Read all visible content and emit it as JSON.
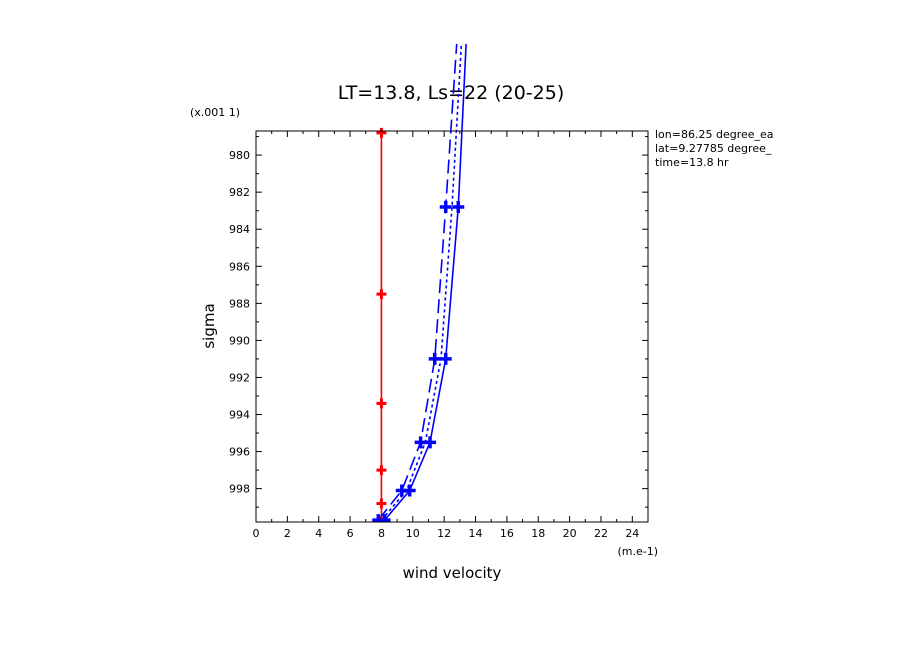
{
  "chart_data": {
    "type": "line",
    "title": "LT=13.8, Ls=22 (20-25)",
    "xlabel": "wind velocity",
    "ylabel": "sigma",
    "x_units": "(m.e-1)",
    "y_units": "(x.001 1)",
    "xlim": [
      0,
      25
    ],
    "ylim": [
      999.8,
      978.7
    ],
    "x_ticks": [
      "0",
      "2",
      "4",
      "6",
      "8",
      "10",
      "12",
      "14",
      "16",
      "18",
      "20",
      "22",
      "24"
    ],
    "y_ticks": [
      "980",
      "982",
      "984",
      "986",
      "988",
      "990",
      "992",
      "994",
      "996",
      "998"
    ],
    "annotations": [
      "lon=86.25 degree_ea",
      "lat=9.27785 degree_",
      "time=13.8 hr"
    ],
    "series": [
      {
        "color": "#ff0000",
        "style": "solid",
        "points": [
          [
            8.0,
            999.8
          ],
          [
            8.0,
            998.8
          ],
          [
            8.0,
            997.0
          ],
          [
            8.0,
            993.4
          ],
          [
            8.0,
            987.5
          ],
          [
            8.0,
            978.8
          ]
        ],
        "markers": [
          [
            8.0,
            999.8
          ],
          [
            8.0,
            998.8
          ],
          [
            8.0,
            997.0
          ],
          [
            8.0,
            993.4
          ],
          [
            8.0,
            987.5
          ],
          [
            8.0,
            978.8
          ]
        ]
      },
      {
        "color": "#0000ff",
        "style": "dash",
        "points": [
          [
            7.8,
            999.7
          ],
          [
            9.3,
            998.1
          ],
          [
            10.5,
            995.5
          ],
          [
            11.4,
            991.0
          ],
          [
            12.1,
            982.8
          ],
          [
            12.8,
            974.0
          ]
        ],
        "markers": [
          [
            7.8,
            999.7
          ],
          [
            9.3,
            998.1
          ],
          [
            10.5,
            995.5
          ],
          [
            11.4,
            991.0
          ],
          [
            12.1,
            982.8
          ]
        ]
      },
      {
        "color": "#0000ff",
        "style": "dot",
        "points": [
          [
            8.0,
            999.7
          ],
          [
            9.6,
            998.1
          ],
          [
            10.8,
            995.5
          ],
          [
            11.8,
            991.0
          ],
          [
            12.5,
            982.8
          ],
          [
            13.1,
            974.0
          ]
        ],
        "markers": []
      },
      {
        "color": "#0000ff",
        "style": "solid",
        "points": [
          [
            8.2,
            999.7
          ],
          [
            9.8,
            998.1
          ],
          [
            11.1,
            995.5
          ],
          [
            12.1,
            991.0
          ],
          [
            12.9,
            982.8
          ],
          [
            13.4,
            974.0
          ]
        ],
        "markers": [
          [
            8.2,
            999.7
          ],
          [
            9.8,
            998.1
          ],
          [
            11.1,
            995.5
          ],
          [
            12.1,
            991.0
          ],
          [
            12.9,
            982.8
          ]
        ]
      }
    ]
  }
}
